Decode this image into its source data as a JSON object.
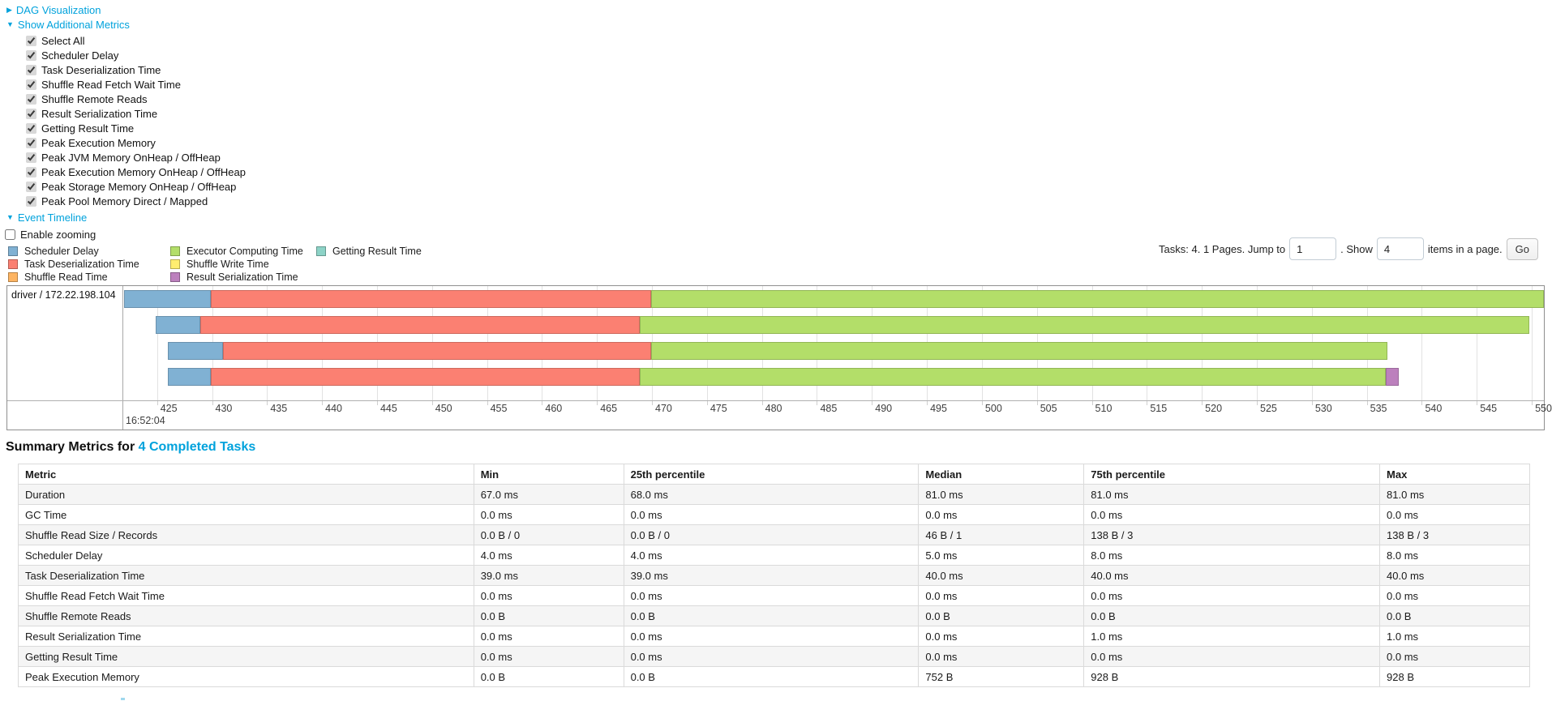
{
  "links": {
    "dag": "DAG Visualization",
    "additional_metrics": "Show Additional Metrics",
    "event_timeline": "Event Timeline"
  },
  "metric_checkboxes": [
    {
      "label": "Select All",
      "checked": true
    },
    {
      "label": "Scheduler Delay",
      "checked": true
    },
    {
      "label": "Task Deserialization Time",
      "checked": true
    },
    {
      "label": "Shuffle Read Fetch Wait Time",
      "checked": true
    },
    {
      "label": "Shuffle Remote Reads",
      "checked": true
    },
    {
      "label": "Result Serialization Time",
      "checked": true
    },
    {
      "label": "Getting Result Time",
      "checked": true
    },
    {
      "label": "Peak Execution Memory",
      "checked": true
    },
    {
      "label": "Peak JVM Memory OnHeap / OffHeap",
      "checked": true
    },
    {
      "label": "Peak Execution Memory OnHeap / OffHeap",
      "checked": true
    },
    {
      "label": "Peak Storage Memory OnHeap / OffHeap",
      "checked": true
    },
    {
      "label": "Peak Pool Memory Direct / Mapped",
      "checked": true
    }
  ],
  "enable_zooming": {
    "label": "Enable zooming",
    "checked": false
  },
  "pagination": {
    "prefix": "Tasks: 4. 1 Pages. Jump to",
    "jump_value": "1",
    "mid": ". Show",
    "show_value": "4",
    "suffix": "items in a page.",
    "go_label": "Go"
  },
  "legend_columns": [
    [
      {
        "key": "scheduler_delay",
        "label": "Scheduler Delay"
      },
      {
        "key": "task_deserialization",
        "label": "Task Deserialization Time"
      },
      {
        "key": "shuffle_read",
        "label": "Shuffle Read Time"
      }
    ],
    [
      {
        "key": "executor_computing",
        "label": "Executor Computing Time"
      },
      {
        "key": "shuffle_write",
        "label": "Shuffle Write Time"
      },
      {
        "key": "result_serialization",
        "label": "Result Serialization Time"
      }
    ],
    [
      {
        "key": "getting_result",
        "label": "Getting Result Time"
      }
    ]
  ],
  "chart_data": {
    "type": "gantt-timeline",
    "group_label": "driver / 172.22.198.104",
    "major_label": "16:52:04",
    "axis": {
      "min": 422,
      "max": 551.1,
      "tick_step_ms": 5,
      "ticks": [
        425,
        430,
        435,
        440,
        445,
        450,
        455,
        460,
        465,
        470,
        475,
        480,
        485,
        490,
        495,
        500,
        505,
        510,
        515,
        520,
        525,
        530,
        535,
        540,
        545,
        550
      ]
    },
    "colors": {
      "scheduler_delay": "#80B1D3",
      "task_deserialization": "#FB8072",
      "shuffle_read": "#FDB462",
      "executor_computing": "#B3DE69",
      "shuffle_write": "#FFED6F",
      "result_serialization": "#BC80BD",
      "getting_result": "#8DD3C7"
    },
    "tasks": [
      {
        "start": 422.0,
        "segments": [
          {
            "type": "scheduler_delay",
            "end": 429.9
          },
          {
            "type": "task_deserialization",
            "end": 469.9
          },
          {
            "type": "executor_computing",
            "end": 551.1
          }
        ]
      },
      {
        "start": 424.9,
        "segments": [
          {
            "type": "scheduler_delay",
            "end": 428.9
          },
          {
            "type": "task_deserialization",
            "end": 468.9
          },
          {
            "type": "executor_computing",
            "end": 549.8
          }
        ]
      },
      {
        "start": 426.0,
        "segments": [
          {
            "type": "scheduler_delay",
            "end": 431.0
          },
          {
            "type": "task_deserialization",
            "end": 469.9
          },
          {
            "type": "executor_computing",
            "end": 536.9
          }
        ]
      },
      {
        "start": 426.0,
        "segments": [
          {
            "type": "scheduler_delay",
            "end": 429.9
          },
          {
            "type": "task_deserialization",
            "end": 468.9
          },
          {
            "type": "executor_computing",
            "end": 536.7
          },
          {
            "type": "result_serialization",
            "end": 537.9
          }
        ]
      }
    ]
  },
  "summary": {
    "title_prefix": "Summary Metrics for ",
    "title_link": "4 Completed Tasks",
    "columns": [
      "Metric",
      "Min",
      "25th percentile",
      "Median",
      "75th percentile",
      "Max"
    ],
    "rows": [
      {
        "metric": "Duration",
        "values": [
          "67.0 ms",
          "68.0 ms",
          "81.0 ms",
          "81.0 ms",
          "81.0 ms"
        ]
      },
      {
        "metric": "GC Time",
        "values": [
          "0.0 ms",
          "0.0 ms",
          "0.0 ms",
          "0.0 ms",
          "0.0 ms"
        ]
      },
      {
        "metric": "Shuffle Read Size / Records",
        "values": [
          "0.0 B / 0",
          "0.0 B / 0",
          "46 B / 1",
          "138 B / 3",
          "138 B / 3"
        ]
      },
      {
        "metric": "Scheduler Delay",
        "values": [
          "4.0 ms",
          "4.0 ms",
          "5.0 ms",
          "8.0 ms",
          "8.0 ms"
        ]
      },
      {
        "metric": "Task Deserialization Time",
        "values": [
          "39.0 ms",
          "39.0 ms",
          "40.0 ms",
          "40.0 ms",
          "40.0 ms"
        ]
      },
      {
        "metric": "Shuffle Read Fetch Wait Time",
        "values": [
          "0.0 ms",
          "0.0 ms",
          "0.0 ms",
          "0.0 ms",
          "0.0 ms"
        ]
      },
      {
        "metric": "Shuffle Remote Reads",
        "values": [
          "0.0 B",
          "0.0 B",
          "0.0 B",
          "0.0 B",
          "0.0 B"
        ]
      },
      {
        "metric": "Result Serialization Time",
        "values": [
          "0.0 ms",
          "0.0 ms",
          "0.0 ms",
          "1.0 ms",
          "1.0 ms"
        ]
      },
      {
        "metric": "Getting Result Time",
        "values": [
          "0.0 ms",
          "0.0 ms",
          "0.0 ms",
          "0.0 ms",
          "0.0 ms"
        ]
      },
      {
        "metric": "Peak Execution Memory",
        "values": [
          "0.0 B",
          "0.0 B",
          "752 B",
          "928 B",
          "928 B"
        ]
      }
    ]
  }
}
